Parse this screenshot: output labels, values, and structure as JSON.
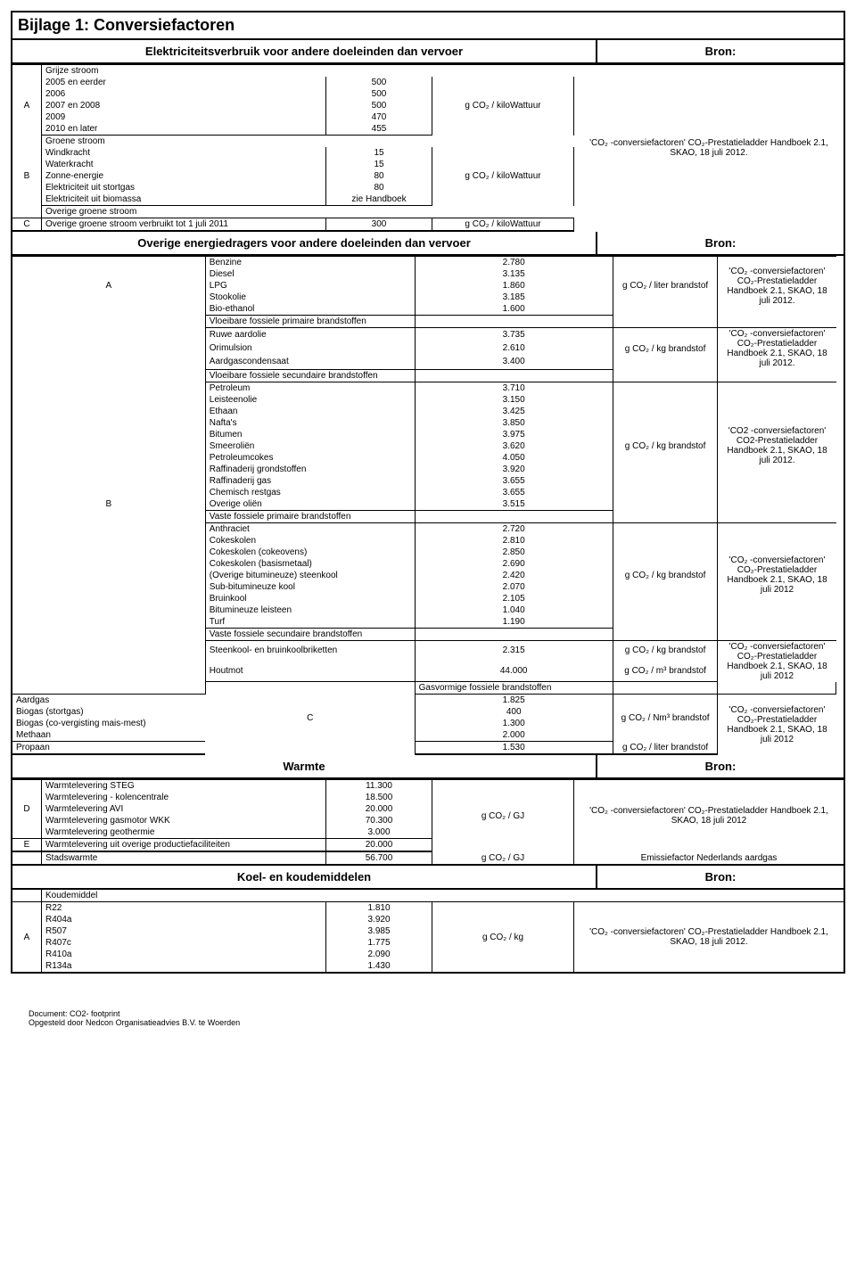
{
  "title": "Bijlage 1: Conversiefactoren",
  "bron_label": "Bron:",
  "sections": {
    "elek": {
      "heading": "Elektriciteitsverbruik voor andere doeleinden dan vervoer",
      "sub_grijze": "Grijze stroom",
      "sub_groene": "Groene stroom",
      "sub_overig": "Overige groene stroom",
      "bron_text": "'CO₂ -conversiefactoren' CO₂-Prestatieladder Handboek 2.1, SKAO, 18 juli 2012.",
      "unit1": "g CO₂ / kiloWattuur",
      "unit2": "g CO₂ / kiloWattuur",
      "unit3": "g CO₂ / kiloWattuur",
      "A": [
        {
          "name": "2005 en eerder",
          "val": "500"
        },
        {
          "name": "2006",
          "val": "500"
        },
        {
          "name": "2007 en 2008",
          "val": "500"
        },
        {
          "name": "2009",
          "val": "470"
        },
        {
          "name": "2010 en later",
          "val": "455"
        }
      ],
      "B": [
        {
          "name": "Windkracht",
          "val": "15"
        },
        {
          "name": "Waterkracht",
          "val": "15"
        },
        {
          "name": "Zonne-energie",
          "val": "80"
        },
        {
          "name": "Elektriciteit uit stortgas",
          "val": "80"
        },
        {
          "name": "Elektriciteit uit biomassa",
          "val": "zie Handboek"
        }
      ],
      "C": {
        "name": "Overige groene stroom verbruikt tot 1 juli 2011",
        "val": "300"
      }
    },
    "overige": {
      "heading": "Overige energiedragers voor andere doeleinden dan vervoer",
      "bron_text": "'CO₂ -conversiefactoren' CO₂-Prestatieladder Handboek 2.1, SKAO, 18 juli 2012.",
      "bron_text2": "'CO2 -conversiefactoren' CO2-Prestatieladder Handboek 2.1, SKAO, 18 juli 2012.",
      "bron_text3": "'CO₂ -conversiefactoren' CO₂-Prestatieladder Handboek 2.1, SKAO, 18 juli 2012",
      "A_unit": "g CO₂ / liter brandstof",
      "A": [
        {
          "name": "Benzine",
          "val": "2.780"
        },
        {
          "name": "Diesel",
          "val": "3.135"
        },
        {
          "name": "LPG",
          "val": "1.860"
        },
        {
          "name": "Stookolie",
          "val": "3.185"
        },
        {
          "name": "Bio-ethanol",
          "val": "1.600"
        }
      ],
      "B_sub1": "Vloeibare fossiele primaire brandstoffen",
      "B_unit1": "g CO₂ / kg brandstof",
      "B1": [
        {
          "name": "Ruwe aardolie",
          "val": "3.735"
        },
        {
          "name": "Orimulsion",
          "val": "2.610"
        },
        {
          "name": "Aardgascondensaat",
          "val": "3.400"
        }
      ],
      "B_sub2": "Vloeibare fossiele secundaire brandstoffen",
      "B_unit2": "g CO₂ / kg brandstof",
      "B2": [
        {
          "name": "Petroleum",
          "val": "3.710"
        },
        {
          "name": "Leisteenolie",
          "val": "3.150"
        },
        {
          "name": "Ethaan",
          "val": "3.425"
        },
        {
          "name": "Nafta's",
          "val": "3.850"
        },
        {
          "name": "Bitumen",
          "val": "3.975"
        },
        {
          "name": "Smeeroliën",
          "val": "3.620"
        },
        {
          "name": "Petroleumcokes",
          "val": "4.050"
        },
        {
          "name": "Raffinaderij grondstoffen",
          "val": "3.920"
        },
        {
          "name": "Raffinaderij gas",
          "val": "3.655"
        },
        {
          "name": "Chemisch restgas",
          "val": "3.655"
        },
        {
          "name": "Overige oliën",
          "val": "3.515"
        }
      ],
      "B_sub3": "Vaste fossiele primaire brandstoffen",
      "B_unit3": "g CO₂ / kg brandstof",
      "B3": [
        {
          "name": "Anthraciet",
          "val": "2.720"
        },
        {
          "name": "Cokeskolen",
          "val": "2.810"
        },
        {
          "name": "Cokeskolen (cokeovens)",
          "val": "2.850"
        },
        {
          "name": "Cokeskolen (basismetaal)",
          "val": "2.690"
        },
        {
          "name": "(Overige bitumineuze) steenkool",
          "val": "2.420"
        },
        {
          "name": "Sub-bitumineuze kool",
          "val": "2.070"
        },
        {
          "name": "Bruinkool",
          "val": "2.105"
        },
        {
          "name": "Bitumineuze leisteen",
          "val": "1.040"
        },
        {
          "name": "Turf",
          "val": "1.190"
        }
      ],
      "B_sub4": "Vaste fossiele secundaire brandstoffen",
      "B4a": {
        "name": "Steenkool- en bruinkoolbriketten",
        "val": "2.315",
        "unit": "g CO₂ / kg brandstof"
      },
      "B4b": {
        "name": "Houtmot",
        "val": "44.000",
        "unit": "g CO₂ / m³ brandstof"
      },
      "C_sub": "Gasvormige fossiele brandstoffen",
      "C_unit": "g CO₂ / Nm³ brandstof",
      "C": [
        {
          "name": "Aardgas",
          "val": "1.825"
        },
        {
          "name": "Biogas (stortgas)",
          "val": "400"
        },
        {
          "name": "Biogas (co-vergisting mais-mest)",
          "val": "1.300"
        },
        {
          "name": "Methaan",
          "val": "2.000"
        }
      ],
      "C2": {
        "name": "Propaan",
        "val": "1.530",
        "unit": "g CO₂ / liter brandstof"
      }
    },
    "warmte": {
      "heading": "Warmte",
      "bron_text": "'CO₂ -conversiefactoren' CO₂-Prestatieladder Handboek 2.1, SKAO, 18 juli 2012",
      "unit": "g CO₂ / GJ",
      "D": [
        {
          "name": "Warmtelevering STEG",
          "val": "11.300"
        },
        {
          "name": "Warmtelevering - kolencentrale",
          "val": "18.500"
        },
        {
          "name": "Warmtelevering AVI",
          "val": "20.000"
        },
        {
          "name": "Warmtelevering gasmotor WKK",
          "val": "70.300"
        },
        {
          "name": "Warmtelevering geothermie",
          "val": "3.000"
        }
      ],
      "E": {
        "name": "Warmtelevering uit overige productiefaciliteiten",
        "val": "20.000"
      },
      "stads": {
        "name": "Stadswarmte",
        "val": "56.700",
        "unit": "g CO₂ / GJ",
        "bron": "Emissiefactor Nederlands aardgas"
      }
    },
    "koel": {
      "heading": "Koel- en koudemiddelen",
      "bron_text": "'CO₂ -conversiefactoren' CO₂-Prestatieladder Handboek 2.1, SKAO, 18 juli 2012.",
      "unit": "g CO₂ / kg",
      "sub": "Koudemiddel",
      "A": [
        {
          "name": "R22",
          "val": "1.810"
        },
        {
          "name": "R404a",
          "val": "3.920"
        },
        {
          "name": "R507",
          "val": "3.985"
        },
        {
          "name": "R407c",
          "val": "1.775"
        },
        {
          "name": "R410a",
          "val": "2.090"
        },
        {
          "name": "R134a",
          "val": "1.430"
        }
      ]
    }
  },
  "footer": {
    "l1": "Document: CO2- footprint",
    "l2": "Opgesteld door Nedcon Organisatieadvies B.V. te Woerden"
  }
}
